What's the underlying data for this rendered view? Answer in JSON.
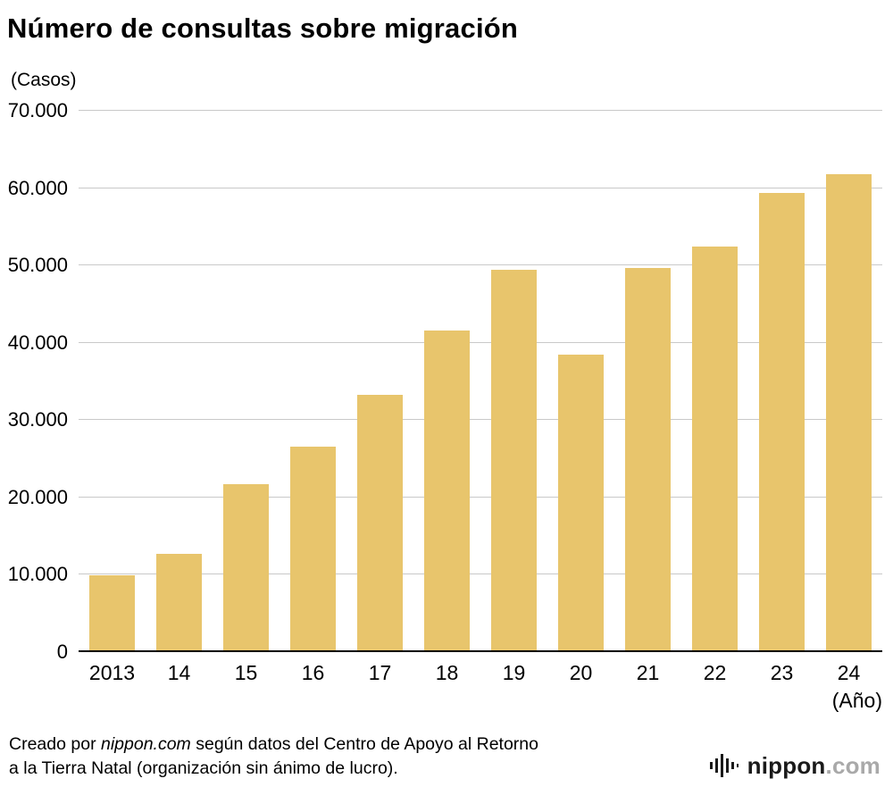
{
  "chart_data": {
    "type": "bar",
    "title": "Número de consultas sobre migración",
    "unit_label": "(Casos)",
    "x_unit_label": "(Año)",
    "categories": [
      "2013",
      "14",
      "15",
      "16",
      "17",
      "18",
      "19",
      "20",
      "21",
      "22",
      "23",
      "24"
    ],
    "values": [
      9700,
      12500,
      21600,
      26400,
      33100,
      41500,
      49400,
      38400,
      49600,
      52400,
      59300,
      61800
    ],
    "ylim": [
      0,
      70000
    ],
    "ytick_interval": 10000,
    "ytick_labels": [
      "0",
      "10.000",
      "20.000",
      "30.000",
      "40.000",
      "50.000",
      "60.000",
      "70.000"
    ],
    "bar_color": "#e8c56c",
    "grid": true,
    "legend": null
  },
  "footer": {
    "credit": {
      "prefix": "Creado por ",
      "brand": "nippon.com",
      "line1_rest": " según datos del Centro de Apoyo al Retorno",
      "line2": "a la Tierra Natal (organización sin ánimo de lucro)."
    },
    "logo": {
      "name": "nippon",
      "tld": ".com"
    }
  }
}
